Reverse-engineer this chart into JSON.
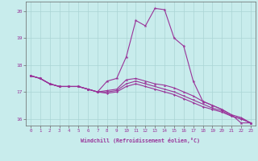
{
  "xlabel": "Windchill (Refroidissement éolien,°C)",
  "bg_color": "#c8ecec",
  "grid_color": "#aad4d4",
  "line_color": "#993399",
  "axis_color": "#666666",
  "xlim": [
    -0.5,
    23.5
  ],
  "ylim": [
    15.75,
    20.35
  ],
  "xticks": [
    0,
    1,
    2,
    3,
    4,
    5,
    6,
    7,
    8,
    9,
    10,
    11,
    12,
    13,
    14,
    15,
    16,
    17,
    18,
    19,
    20,
    21,
    22,
    23
  ],
  "yticks": [
    16,
    17,
    18,
    19,
    20
  ],
  "x": [
    0,
    1,
    2,
    3,
    4,
    5,
    6,
    7,
    8,
    9,
    10,
    11,
    12,
    13,
    14,
    15,
    16,
    17,
    18,
    19,
    20,
    21,
    22,
    23
  ],
  "line1": [
    17.6,
    17.5,
    17.3,
    17.2,
    17.2,
    17.2,
    17.1,
    17.0,
    17.4,
    17.5,
    18.3,
    19.65,
    19.45,
    20.1,
    20.05,
    19.0,
    18.7,
    17.4,
    16.65,
    16.5,
    16.35,
    16.15,
    15.85,
    15.85
  ],
  "line2": [
    17.6,
    17.5,
    17.3,
    17.2,
    17.2,
    17.2,
    17.1,
    17.0,
    17.05,
    17.1,
    17.45,
    17.5,
    17.4,
    17.3,
    17.25,
    17.15,
    17.0,
    16.85,
    16.65,
    16.5,
    16.35,
    16.15,
    16.05,
    15.85
  ],
  "line3": [
    17.6,
    17.5,
    17.3,
    17.2,
    17.2,
    17.2,
    17.1,
    17.0,
    17.0,
    17.05,
    17.3,
    17.4,
    17.3,
    17.2,
    17.1,
    17.0,
    16.85,
    16.7,
    16.55,
    16.4,
    16.3,
    16.1,
    16.0,
    15.85
  ],
  "line4": [
    17.6,
    17.5,
    17.3,
    17.2,
    17.2,
    17.2,
    17.1,
    17.0,
    16.95,
    17.0,
    17.2,
    17.3,
    17.2,
    17.1,
    17.0,
    16.9,
    16.75,
    16.6,
    16.45,
    16.35,
    16.25,
    16.1,
    16.0,
    15.85
  ]
}
